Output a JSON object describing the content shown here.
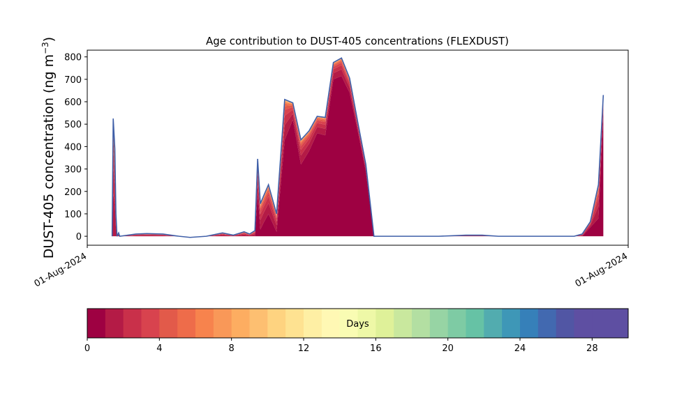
{
  "chart_data": {
    "type": "area",
    "title": "Age contribution to DUST-405 concentrations (FLEXDUST)",
    "ylabel_main": "DUST-405 concentration (ng m",
    "ylabel_sup": "−3",
    "ylabel_close": ")",
    "xlabel": "",
    "ylim": [
      -40,
      830
    ],
    "yticks": [
      0,
      100,
      200,
      300,
      400,
      500,
      600,
      700,
      800
    ],
    "xticks": [
      {
        "x": 0,
        "label": "01-Aug-2024"
      },
      {
        "x": 100,
        "label": "01-Aug-2024"
      }
    ],
    "xlim": [
      0,
      100
    ],
    "grid": false,
    "x": [
      4.6,
      4.8,
      5.1,
      5.3,
      5.5,
      5.8,
      6.0,
      7.5,
      9,
      11,
      14,
      17,
      19,
      22,
      25,
      27,
      29,
      30,
      31,
      31.5,
      32,
      32.6,
      33.5,
      35,
      36.5,
      38,
      39.5,
      41,
      42.5,
      44,
      45.5,
      47,
      48.5,
      50,
      51.5,
      53,
      54.5,
      56,
      57.5,
      58.5,
      60,
      65,
      70,
      73,
      76,
      80,
      85,
      88,
      90,
      91.5,
      93,
      94.5,
      95.4
    ],
    "total": [
      0,
      525,
      390,
      100,
      0,
      15,
      0,
      5,
      10,
      12,
      10,
      0,
      -5,
      0,
      15,
      5,
      20,
      10,
      25,
      345,
      145,
      180,
      230,
      100,
      610,
      595,
      430,
      470,
      535,
      530,
      775,
      795,
      705,
      510,
      320,
      0,
      0,
      0,
      0,
      0,
      0,
      0,
      5,
      5,
      0,
      0,
      0,
      0,
      0,
      10,
      65,
      230,
      630
    ],
    "fresh": [
      0,
      0,
      0,
      0,
      0,
      0,
      0,
      0,
      0,
      0,
      0,
      0,
      0,
      0,
      0,
      0,
      0,
      0,
      0,
      190,
      30,
      60,
      100,
      20,
      430,
      520,
      320,
      380,
      460,
      450,
      700,
      715,
      640,
      470,
      290,
      0,
      0,
      0,
      0,
      0,
      0,
      0,
      0,
      0,
      0,
      0,
      0,
      0,
      0,
      0,
      40,
      80,
      560
    ],
    "colorbar": {
      "label": "Days",
      "min": 0,
      "max": 30,
      "ticks": [
        0,
        4,
        8,
        12,
        16,
        20,
        24,
        28
      ],
      "colors": [
        "#9e0142",
        "#b41b46",
        "#c9304a",
        "#d8434e",
        "#e25a4a",
        "#ee6c4a",
        "#f7834d",
        "#f99858",
        "#fdad61",
        "#fdbf71",
        "#fed380",
        "#fee291",
        "#feefa4",
        "#fff8b4",
        "#f9fcb3",
        "#eef8a7",
        "#dff199",
        "#c9e89e",
        "#b3dfa2",
        "#97d4a4",
        "#7ecba4",
        "#66c2a5",
        "#52acaf",
        "#3e97b7",
        "#3680b9",
        "#4269b0",
        "#5156a4",
        "#5e4fa2",
        "#5e4fa2",
        "#5e4fa2"
      ]
    },
    "total_line_color": "#3f5fa8"
  }
}
